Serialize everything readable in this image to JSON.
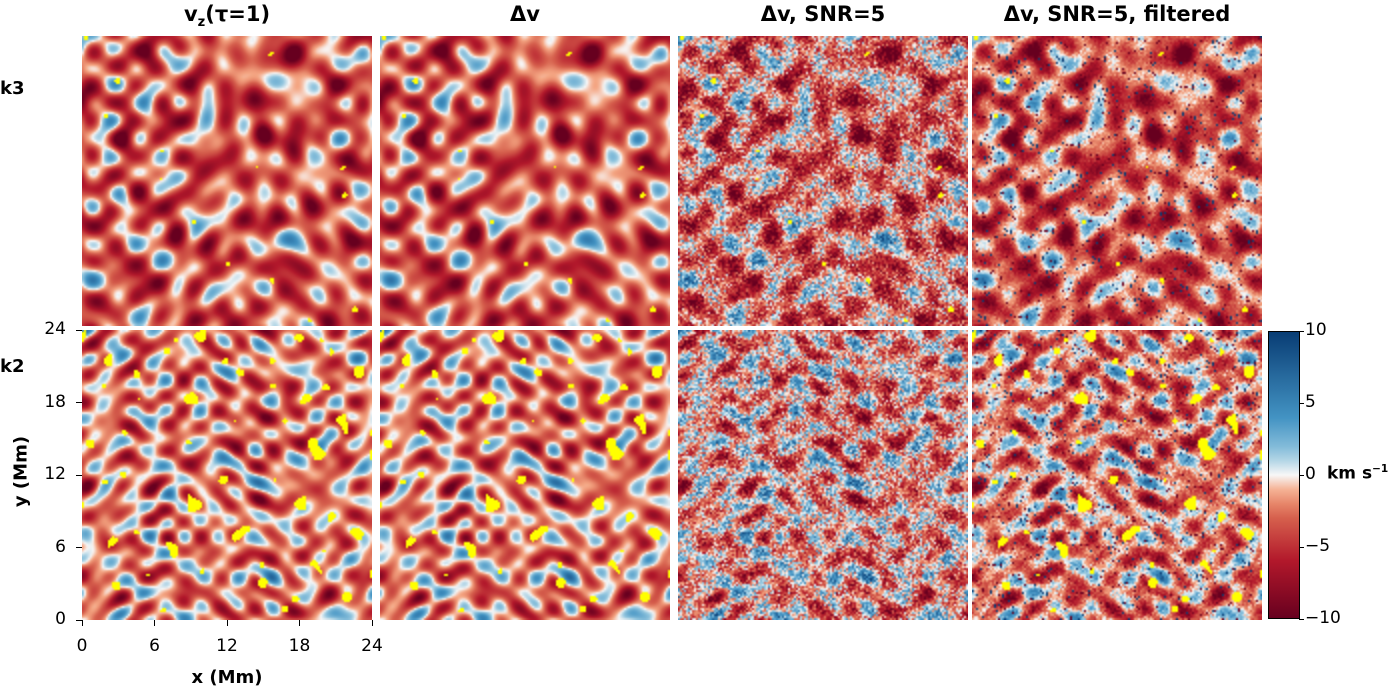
{
  "column_titles": [
    {
      "main": "v",
      "sub": "z",
      "rest": "(τ=1)"
    },
    {
      "main": "Δv",
      "sub": "",
      "rest": ""
    },
    {
      "main": "Δv, SNR=5",
      "sub": "",
      "rest": ""
    },
    {
      "main": "Δv, SNR=5, filtered",
      "sub": "",
      "rest": ""
    }
  ],
  "row_labels": [
    "k3",
    "k2"
  ],
  "chart_data": {
    "type": "heatmap",
    "layout": "2x4 grid of image panels",
    "xlabel": "x (Mm)",
    "ylabel": "y (Mm)",
    "xlim": [
      0,
      24
    ],
    "ylim": [
      0,
      24
    ],
    "xticks": [
      "0",
      "6",
      "12",
      "18",
      "24"
    ],
    "yticks": [
      "0",
      "6",
      "12",
      "18",
      "24"
    ],
    "colorbar": {
      "range": [
        -10,
        10
      ],
      "ticks": [
        "10",
        "5",
        "0",
        "−5",
        "−10"
      ],
      "zero_label_unit_main": "km s",
      "zero_label_unit_sup": "−1",
      "colormap": "RdBu (red negative, blue positive)",
      "colors": {
        "max": "#083c74",
        "mid": "#f7f7f7",
        "min": "#67001f"
      }
    },
    "masked_color": "#ffff00",
    "panels": [
      {
        "row": "k3",
        "column": "vz(τ=1)",
        "noise": 0.0,
        "filtered": false
      },
      {
        "row": "k3",
        "column": "Δv",
        "noise": 0.0,
        "filtered": false
      },
      {
        "row": "k3",
        "column": "Δv, SNR=5",
        "noise": 1.0,
        "filtered": false
      },
      {
        "row": "k3",
        "column": "Δv, SNR=5, filtered",
        "noise": 0.4,
        "filtered": true
      },
      {
        "row": "k2",
        "column": "vz(τ=1)",
        "noise": 0.0,
        "filtered": false
      },
      {
        "row": "k2",
        "column": "Δv",
        "noise": 0.0,
        "filtered": false
      },
      {
        "row": "k2",
        "column": "Δv, SNR=5",
        "noise": 1.0,
        "filtered": false
      },
      {
        "row": "k2",
        "column": "Δv, SNR=5, filtered",
        "noise": 0.6,
        "filtered": true
      }
    ]
  }
}
